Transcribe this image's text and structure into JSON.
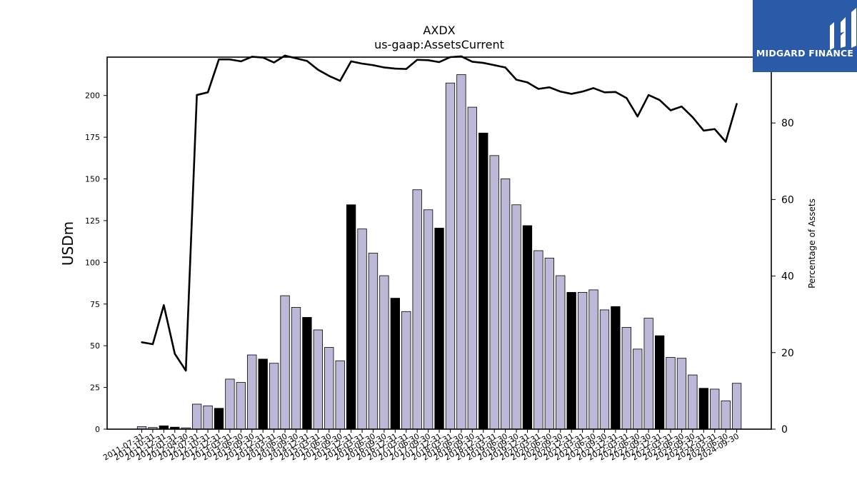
{
  "brand": {
    "name": "MIDGARD FINANCE",
    "colors": {
      "background": "#2b5aa8",
      "foreground": "#ffffff"
    }
  },
  "chart_data": {
    "type": "bar",
    "title": "AXDX",
    "subtitle": "us-gaap:AssetsCurrent",
    "ylabel": "USDm",
    "y2label": "Percentage of Assets",
    "ylim": [
      0,
      223
    ],
    "yticks": [
      0,
      25,
      50,
      75,
      100,
      125,
      150,
      175,
      200
    ],
    "y2lim": [
      0,
      97.2
    ],
    "y2ticks": [
      0,
      20,
      40,
      60,
      80
    ],
    "grid": false,
    "colors": {
      "bar": "#bcb8d8",
      "bar_highlight": "#000000",
      "edge": "#000000",
      "line": "#000000"
    },
    "categories": [
      "2011-07-31",
      "2011-10-31",
      "2011-12-31",
      "2012-01-31",
      "2012-04-30",
      "2012-07-31",
      "2012-10-31",
      "2012-12-31",
      "2013-03-31",
      "2013-06-30",
      "2013-09-30",
      "2013-12-31",
      "2014-03-31",
      "2014-06-30",
      "2014-09-30",
      "2014-12-31",
      "2015-03-31",
      "2015-06-30",
      "2015-09-30",
      "2015-12-31",
      "2016-03-31",
      "2016-06-30",
      "2016-09-30",
      "2016-12-31",
      "2017-03-31",
      "2017-06-30",
      "2017-09-30",
      "2017-12-31",
      "2018-03-31",
      "2018-06-30",
      "2018-09-30",
      "2018-12-31",
      "2019-03-31",
      "2019-06-30",
      "2019-09-30",
      "2019-12-31",
      "2020-03-31",
      "2020-06-30",
      "2020-09-30",
      "2020-12-31",
      "2021-03-31",
      "2021-06-30",
      "2021-09-30",
      "2021-12-31",
      "2022-03-31",
      "2022-06-30",
      "2022-09-30",
      "2022-12-31",
      "2023-03-31",
      "2023-06-30",
      "2023-09-30",
      "2023-12-31",
      "2024-03-31",
      "2024-06-30",
      "2024-09-30"
    ],
    "series": [
      {
        "kind": "bar",
        "axis": "left",
        "values": [
          1.5,
          1.0,
          2.0,
          1.2,
          0.8,
          15,
          14,
          12.5,
          30,
          28,
          44.5,
          42,
          39.5,
          80,
          73,
          67,
          59.5,
          49,
          41,
          134.5,
          120,
          105.5,
          92,
          78.5,
          70.5,
          143.5,
          131.5,
          120.5,
          207.5,
          212.5,
          193,
          177.5,
          164,
          150,
          134.5,
          122,
          107,
          102.5,
          92,
          82,
          82,
          83.5,
          71.5,
          73.5,
          61,
          48,
          66.5,
          56,
          43,
          42.5,
          32.5,
          24.5,
          24,
          17,
          27.5
        ],
        "highlight": [
          false,
          false,
          true,
          true,
          false,
          false,
          false,
          true,
          false,
          false,
          false,
          true,
          false,
          false,
          false,
          true,
          false,
          false,
          false,
          true,
          false,
          false,
          false,
          true,
          false,
          false,
          false,
          true,
          false,
          false,
          false,
          true,
          false,
          false,
          false,
          true,
          false,
          false,
          false,
          true,
          false,
          false,
          false,
          true,
          false,
          false,
          false,
          true,
          false,
          false,
          false,
          true,
          false,
          false,
          false
        ]
      },
      {
        "kind": "line",
        "axis": "right",
        "values": [
          22.7,
          22.2,
          32.4,
          19.7,
          15.3,
          87.3,
          88.0,
          96.6,
          96.6,
          96.1,
          97.3,
          97.1,
          95.8,
          97.6,
          96.9,
          96.2,
          93.9,
          92.3,
          91.0,
          96.1,
          95.5,
          95.1,
          94.5,
          94.2,
          94.1,
          96.5,
          96.4,
          95.9,
          97.2,
          97.4,
          96.0,
          95.7,
          95.1,
          94.5,
          91.3,
          90.6,
          88.9,
          89.3,
          88.2,
          87.6,
          88.2,
          89.1,
          88.0,
          88.1,
          86.5,
          81.7,
          87.3,
          86.0,
          83.3,
          84.3,
          81.5,
          78.0,
          78.4,
          75.1,
          85.0
        ]
      }
    ]
  }
}
